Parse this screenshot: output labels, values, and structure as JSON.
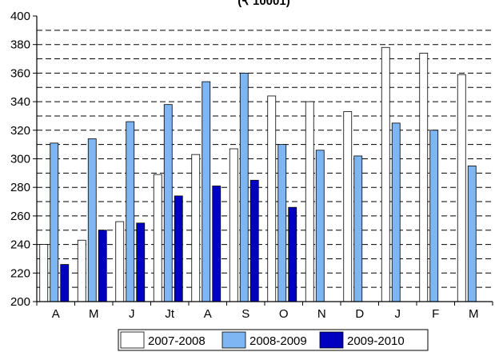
{
  "chart_data": {
    "type": "bar",
    "title": "(₹ 10001)",
    "categories": [
      "A",
      "M",
      "J",
      "Jt",
      "A",
      "S",
      "O",
      "N",
      "D",
      "J",
      "F",
      "M"
    ],
    "series": [
      {
        "name": "2007-2008",
        "color": "#FFFFFF",
        "values": [
          240,
          243,
          256,
          289,
          303,
          307,
          344,
          340,
          333,
          378,
          374,
          359
        ]
      },
      {
        "name": "2008-2009",
        "color": "#7EB6F4",
        "values": [
          311,
          314,
          326,
          338,
          354,
          360,
          310,
          306,
          302,
          325,
          320,
          295
        ]
      },
      {
        "name": "2009-2010",
        "color": "#0000C0",
        "values": [
          226,
          250,
          255,
          274,
          281,
          285,
          266,
          null,
          null,
          null,
          null,
          null
        ]
      }
    ],
    "ylim": [
      200,
      400
    ],
    "yticks": [
      "200",
      "220",
      "240",
      "260",
      "280",
      "300",
      "320",
      "340",
      "360",
      "380",
      "400"
    ],
    "grid": "dashed-horizontal",
    "legend": "bottom"
  }
}
